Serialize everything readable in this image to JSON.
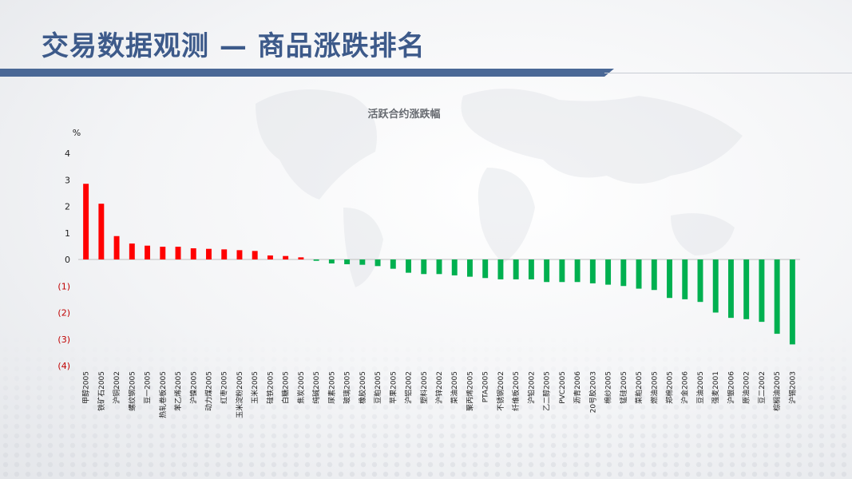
{
  "header": {
    "title": "交易数据观测 — 商品涨跌排名"
  },
  "chart_data": {
    "type": "bar",
    "title": "活跃合约涨跌幅",
    "unit": "%",
    "ylim": [
      -4,
      4
    ],
    "yticks": [
      {
        "value": 4,
        "label": "4"
      },
      {
        "value": 3,
        "label": "3"
      },
      {
        "value": 2,
        "label": "2"
      },
      {
        "value": 1,
        "label": "1"
      },
      {
        "value": 0,
        "label": "0"
      },
      {
        "value": -1,
        "label": "(1)"
      },
      {
        "value": -2,
        "label": "(2)"
      },
      {
        "value": -3,
        "label": "(3)"
      },
      {
        "value": -4,
        "label": "(4)"
      }
    ],
    "grid": false,
    "legend": "none",
    "positive_color": "#ff0000",
    "negative_color": "#00b050",
    "negative_label_color": "#c00000",
    "categories": [
      "甲醇2005",
      "铁矿石2005",
      "沪铜2002",
      "螺纹钢2005",
      "豆一2005",
      "热轧卷板2005",
      "苯乙烯2005",
      "沪镍2005",
      "动力煤2005",
      "红枣2005",
      "玉米淀粉2005",
      "玉米2005",
      "硅铁2005",
      "白糖2005",
      "焦炭2005",
      "纯碱2005",
      "尿素2005",
      "玻璃2005",
      "橡胶2005",
      "豆粕2005",
      "苹果2005",
      "沪铝2002",
      "塑料2005",
      "沪锌2002",
      "菜油2005",
      "聚丙烯2005",
      "PTA2005",
      "不锈钢2002",
      "纤维板2005",
      "沪铅2002",
      "乙二醇2005",
      "PVC2005",
      "沥青2006",
      "20号胶2003",
      "棉纱2005",
      "锰硅2005",
      "菜粕2005",
      "燃油2005",
      "郑棉2005",
      "沪金2006",
      "豆油2005",
      "强麦2001",
      "沪银2006",
      "原油2002",
      "豆二2002",
      "棕榈油2005",
      "沪锡2003"
    ],
    "values": [
      2.85,
      2.1,
      0.88,
      0.6,
      0.52,
      0.48,
      0.48,
      0.42,
      0.4,
      0.38,
      0.35,
      0.32,
      0.15,
      0.13,
      0.08,
      -0.05,
      -0.15,
      -0.18,
      -0.2,
      -0.25,
      -0.35,
      -0.5,
      -0.55,
      -0.55,
      -0.6,
      -0.65,
      -0.7,
      -0.75,
      -0.75,
      -0.75,
      -0.85,
      -0.85,
      -0.85,
      -0.9,
      -0.95,
      -1.0,
      -1.1,
      -1.15,
      -1.45,
      -1.5,
      -1.6,
      -2.0,
      -2.2,
      -2.25,
      -2.35,
      -2.8,
      -3.2
    ]
  }
}
